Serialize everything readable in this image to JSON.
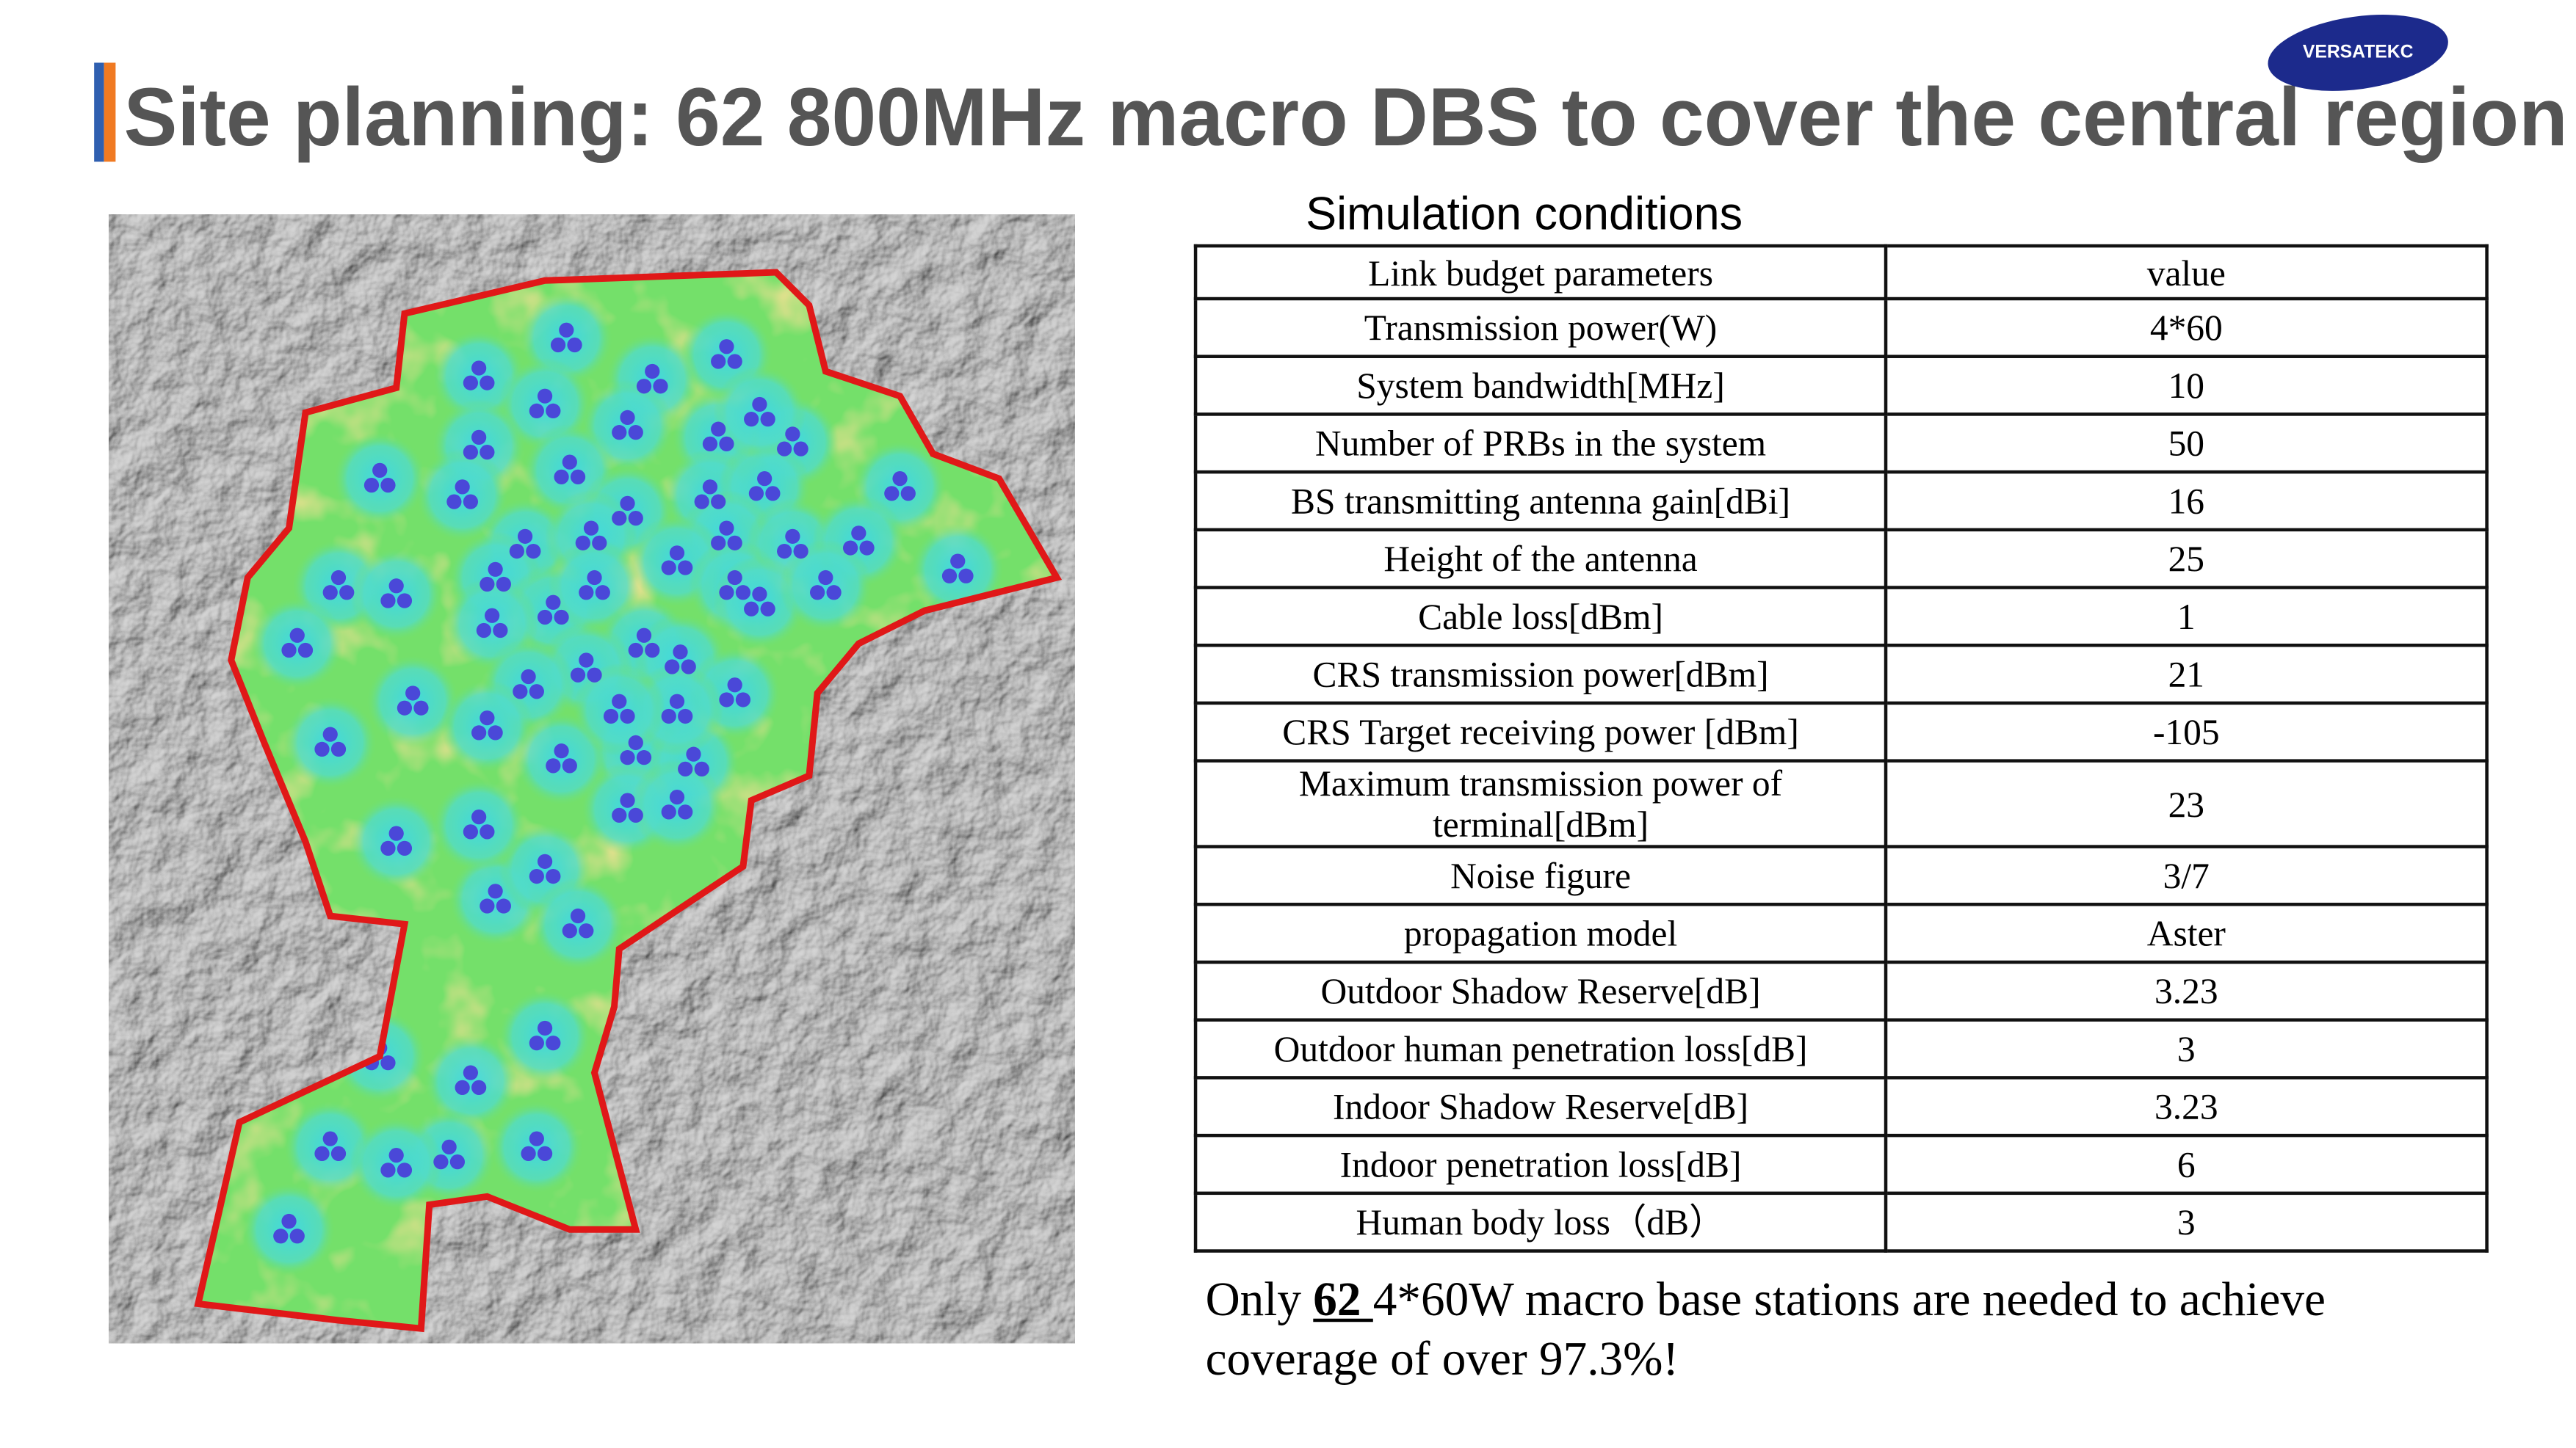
{
  "header": {
    "title": "Site planning: 62 800MHz macro DBS to cover the central region",
    "logo": "VERSATEKC"
  },
  "table": {
    "caption": "Simulation conditions",
    "columns": [
      "Link budget parameters",
      "value"
    ],
    "rows": [
      [
        "Transmission power(W)",
        "4*60"
      ],
      [
        "System bandwidth[MHz]",
        "10"
      ],
      [
        "Number of PRBs in the system",
        "50"
      ],
      [
        "BS transmitting antenna gain[dBi]",
        "16"
      ],
      [
        "Height of the antenna",
        "25"
      ],
      [
        "Cable loss[dBm]",
        "1"
      ],
      [
        "CRS transmission power[dBm]",
        "21"
      ],
      [
        "CRS Target receiving power [dBm]",
        "-105"
      ],
      [
        "Maximum transmission power of terminal[dBm]",
        "23"
      ],
      [
        "Noise figure",
        "3/7"
      ],
      [
        "propagation model",
        "Aster"
      ],
      [
        "Outdoor Shadow Reserve[dB]",
        "3.23"
      ],
      [
        "Outdoor human penetration loss[dB]",
        "3"
      ],
      [
        "Indoor Shadow Reserve[dB]",
        "3.23"
      ],
      [
        "Indoor penetration loss[dB]",
        "6"
      ],
      [
        "Human body loss（dB）",
        "3"
      ]
    ]
  },
  "footer": {
    "parts": [
      "Only ",
      "62 ",
      "4*60W macro base stations are needed to achieve coverage of over 97.3%!"
    ]
  }
}
